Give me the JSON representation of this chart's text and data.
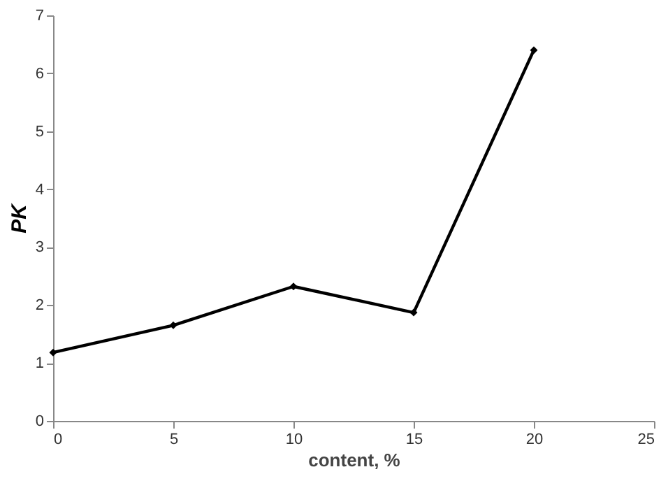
{
  "chart_data": {
    "type": "line",
    "xlabel": "content, %",
    "ylabel": "PK",
    "x": [
      0,
      5,
      10,
      15,
      20
    ],
    "series": [
      {
        "color": "#000000",
        "values": [
          1.18,
          1.65,
          2.32,
          1.87,
          6.4
        ]
      }
    ],
    "xlim": [
      0,
      25
    ],
    "xticks": [
      0,
      5,
      10,
      15,
      20,
      25
    ],
    "ylim": [
      0,
      7
    ],
    "yticks": [
      0,
      1,
      2,
      3,
      4,
      5,
      6,
      7
    ],
    "grid": false,
    "marker": "diamond",
    "line_style": "solid"
  }
}
